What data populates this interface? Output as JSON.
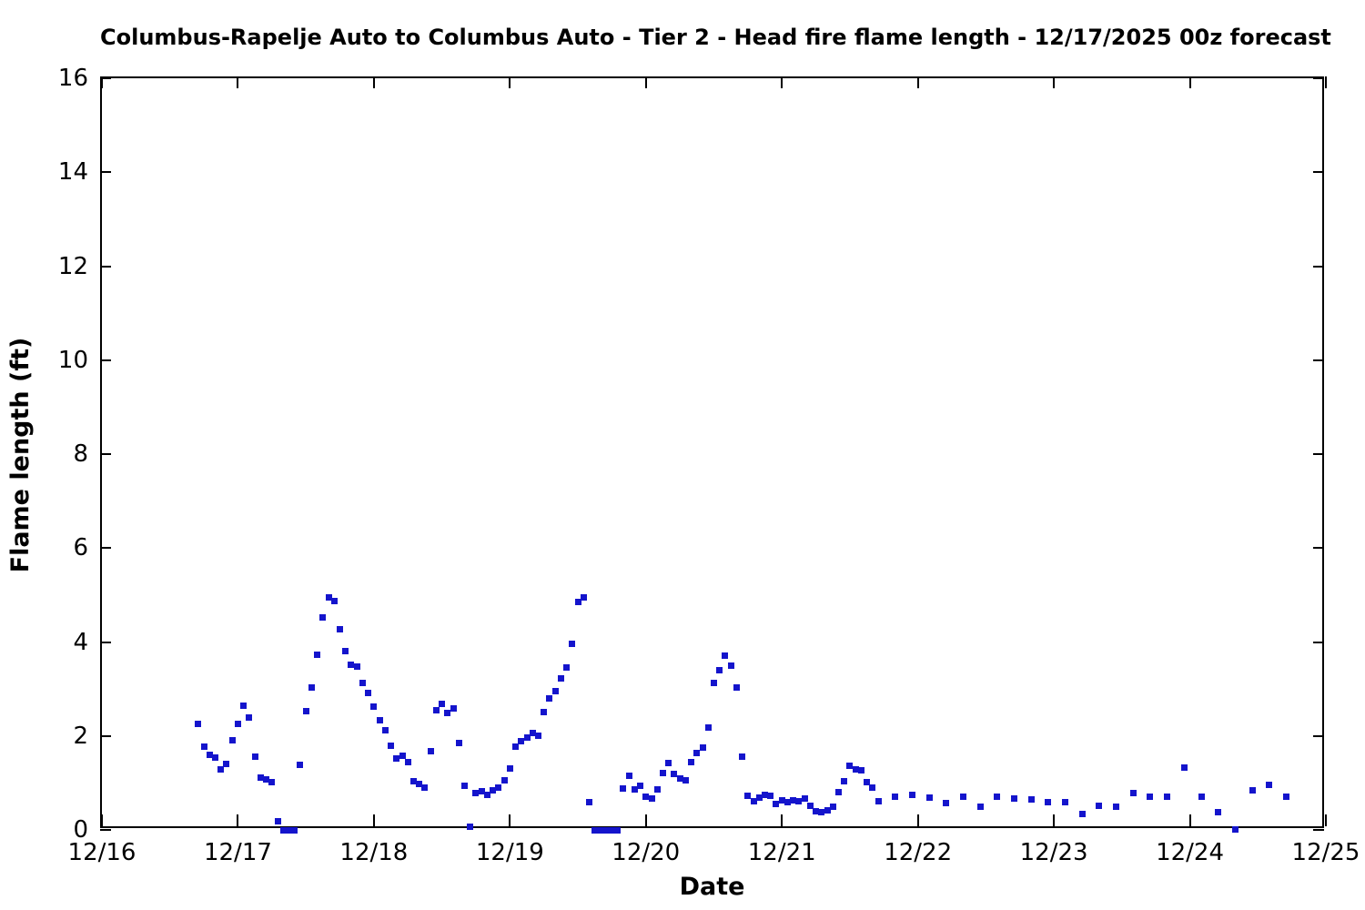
{
  "chart_data": {
    "type": "scatter",
    "title": "Columbus-Rapelje Auto to Columbus Auto - Tier 2 - Head fire flame length - 12/17/2025 00z forecast",
    "xlabel": "Date",
    "ylabel": "Flame length (ft)",
    "x_axis_note": "x values are days after 12/16 00:00 local time",
    "xlim": [
      0,
      9
    ],
    "ylim": [
      0,
      16
    ],
    "grid": false,
    "legend": "none",
    "marker": "filled-square",
    "marker_size_px": 7,
    "point_color": "#1414cc",
    "x_tick_values": [
      0,
      1,
      2,
      3,
      4,
      5,
      6,
      7,
      8,
      9
    ],
    "x_tick_labels": [
      "12/16",
      "12/17",
      "12/18",
      "12/19",
      "12/20",
      "12/21",
      "12/22",
      "12/23",
      "12/24",
      "12/25"
    ],
    "y_tick_values": [
      0,
      2,
      4,
      6,
      8,
      10,
      12,
      14,
      16
    ],
    "y_tick_labels": [
      "0",
      "2",
      "4",
      "6",
      "8",
      "10",
      "12",
      "14",
      "16"
    ],
    "points": [
      [
        0.7083,
        2.26
      ],
      [
        0.75,
        1.78
      ],
      [
        0.7917,
        1.6
      ],
      [
        0.8333,
        1.54
      ],
      [
        0.875,
        1.28
      ],
      [
        0.9167,
        1.41
      ],
      [
        0.9583,
        1.91
      ],
      [
        1,
        2.25
      ],
      [
        1.0417,
        2.64
      ],
      [
        1.0833,
        2.4
      ],
      [
        1.125,
        1.56
      ],
      [
        1.1667,
        1.11
      ],
      [
        1.2083,
        1.07
      ],
      [
        1.25,
        1.02
      ],
      [
        1.2917,
        0.19
      ],
      [
        1.3333,
        0
      ],
      [
        1.375,
        0
      ],
      [
        1.4167,
        0
      ],
      [
        1.4583,
        1.39
      ],
      [
        1.5,
        2.53
      ],
      [
        1.5417,
        3.04
      ],
      [
        1.5833,
        3.72
      ],
      [
        1.625,
        4.53
      ],
      [
        1.6667,
        4.95
      ],
      [
        1.7083,
        4.87
      ],
      [
        1.75,
        4.28
      ],
      [
        1.7917,
        3.81
      ],
      [
        1.8333,
        3.52
      ],
      [
        1.875,
        3.47
      ],
      [
        1.9167,
        3.13
      ],
      [
        1.9583,
        2.92
      ],
      [
        2,
        2.62
      ],
      [
        2.0417,
        2.34
      ],
      [
        2.0833,
        2.12
      ],
      [
        2.125,
        1.8
      ],
      [
        2.1667,
        1.52
      ],
      [
        2.2083,
        1.58
      ],
      [
        2.25,
        1.44
      ],
      [
        2.2917,
        1.03
      ],
      [
        2.3333,
        0.98
      ],
      [
        2.375,
        0.91
      ],
      [
        2.4167,
        1.67
      ],
      [
        2.4583,
        2.54
      ],
      [
        2.5,
        2.68
      ],
      [
        2.5417,
        2.49
      ],
      [
        2.5833,
        2.59
      ],
      [
        2.625,
        1.85
      ],
      [
        2.6667,
        0.93
      ],
      [
        2.7083,
        0.07
      ],
      [
        2.75,
        0.78
      ],
      [
        2.7917,
        0.82
      ],
      [
        2.8333,
        0.74
      ],
      [
        2.875,
        0.84
      ],
      [
        2.9167,
        0.91
      ],
      [
        2.9583,
        1.06
      ],
      [
        3,
        1.31
      ],
      [
        3.0417,
        1.78
      ],
      [
        3.0833,
        1.89
      ],
      [
        3.125,
        1.97
      ],
      [
        3.1667,
        2.07
      ],
      [
        3.2083,
        2
      ],
      [
        3.25,
        2.51
      ],
      [
        3.2917,
        2.79
      ],
      [
        3.3333,
        2.95
      ],
      [
        3.375,
        3.23
      ],
      [
        3.4167,
        3.46
      ],
      [
        3.4583,
        3.96
      ],
      [
        3.5,
        4.86
      ],
      [
        3.5417,
        4.94
      ],
      [
        3.5833,
        0.6
      ],
      [
        3.625,
        0
      ],
      [
        3.6667,
        0
      ],
      [
        3.7083,
        0
      ],
      [
        3.75,
        0
      ],
      [
        3.7917,
        0
      ],
      [
        3.8333,
        0.89
      ],
      [
        3.875,
        1.15
      ],
      [
        3.9167,
        0.87
      ],
      [
        3.9583,
        0.94
      ],
      [
        4,
        0.71
      ],
      [
        4.0417,
        0.66
      ],
      [
        4.0833,
        0.87
      ],
      [
        4.125,
        1.22
      ],
      [
        4.1667,
        1.42
      ],
      [
        4.2083,
        1.2
      ],
      [
        4.25,
        1.09
      ],
      [
        4.2917,
        1.05
      ],
      [
        4.3333,
        1.45
      ],
      [
        4.375,
        1.63
      ],
      [
        4.4167,
        1.76
      ],
      [
        4.4583,
        2.17
      ],
      [
        4.5,
        3.12
      ],
      [
        4.5417,
        3.39
      ],
      [
        4.5833,
        3.7
      ],
      [
        4.625,
        3.49
      ],
      [
        4.6667,
        3.04
      ],
      [
        4.7083,
        1.55
      ],
      [
        4.75,
        0.72
      ],
      [
        4.7917,
        0.61
      ],
      [
        4.8333,
        0.68
      ],
      [
        4.875,
        0.74
      ],
      [
        4.9167,
        0.73
      ],
      [
        4.9583,
        0.55
      ],
      [
        5,
        0.63
      ],
      [
        5.0417,
        0.59
      ],
      [
        5.0833,
        0.63
      ],
      [
        5.125,
        0.61
      ],
      [
        5.1667,
        0.66
      ],
      [
        5.2083,
        0.52
      ],
      [
        5.25,
        0.4
      ],
      [
        5.2917,
        0.37
      ],
      [
        5.3333,
        0.42
      ],
      [
        5.375,
        0.5
      ],
      [
        5.4167,
        0.81
      ],
      [
        5.4583,
        1.03
      ],
      [
        5.5,
        1.36
      ],
      [
        5.5417,
        1.29
      ],
      [
        5.5833,
        1.26
      ],
      [
        5.625,
        1.02
      ],
      [
        5.6667,
        0.9
      ],
      [
        5.7083,
        0.61
      ],
      [
        5.8333,
        0.71
      ],
      [
        5.9583,
        0.74
      ],
      [
        6.0833,
        0.68
      ],
      [
        6.2083,
        0.57
      ],
      [
        6.3333,
        0.7
      ],
      [
        6.4583,
        0.5
      ],
      [
        6.5833,
        0.71
      ],
      [
        6.7083,
        0.66
      ],
      [
        6.8333,
        0.65
      ],
      [
        6.9583,
        0.6
      ],
      [
        7.0833,
        0.6
      ],
      [
        7.2083,
        0.34
      ],
      [
        7.3333,
        0.52
      ],
      [
        7.4583,
        0.5
      ],
      [
        7.5833,
        0.78
      ],
      [
        7.7083,
        0.71
      ],
      [
        7.8333,
        0.71
      ],
      [
        7.9583,
        1.32
      ],
      [
        8.0833,
        0.7
      ],
      [
        8.2083,
        0.38
      ],
      [
        8.3333,
        0.01
      ],
      [
        8.4583,
        0.84
      ],
      [
        8.5833,
        0.96
      ],
      [
        8.7083,
        0.7
      ]
    ]
  }
}
